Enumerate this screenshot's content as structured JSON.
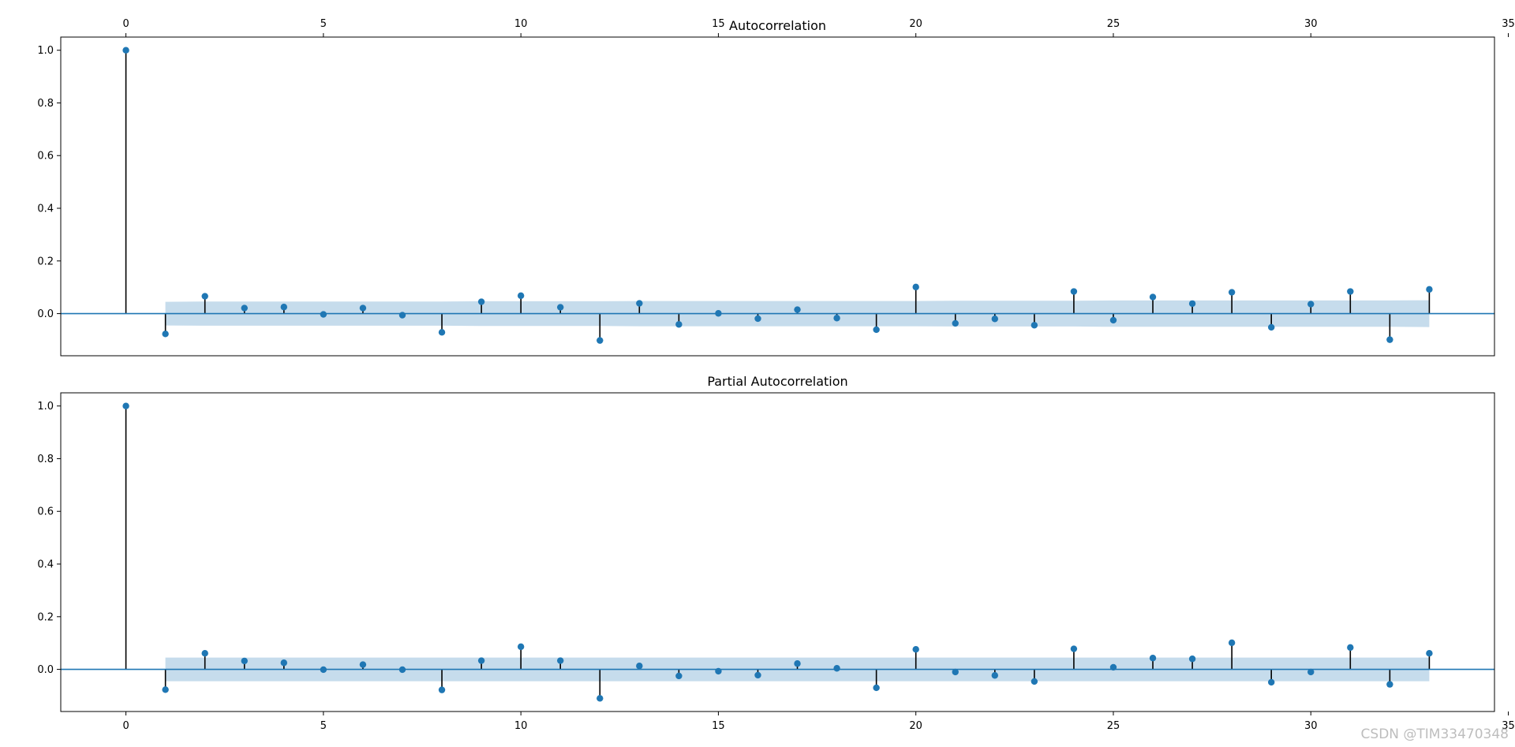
{
  "chart_data": [
    {
      "type": "scatter",
      "title": "Autocorrelation",
      "xlabel": "",
      "ylabel": "",
      "x": [
        0,
        1,
        2,
        3,
        4,
        5,
        6,
        7,
        8,
        9,
        10,
        11,
        12,
        13,
        14,
        15,
        16,
        17,
        18,
        19,
        20,
        21,
        22,
        23,
        24,
        25,
        26,
        27,
        28,
        29,
        30,
        31,
        32,
        33
      ],
      "values": [
        1.0,
        -0.077,
        0.066,
        0.021,
        0.025,
        -0.003,
        0.021,
        -0.006,
        -0.071,
        0.045,
        0.068,
        0.024,
        -0.102,
        0.039,
        -0.041,
        0.001,
        -0.019,
        0.015,
        -0.017,
        -0.061,
        0.101,
        -0.037,
        -0.02,
        -0.044,
        0.084,
        -0.025,
        0.063,
        0.038,
        0.081,
        -0.052,
        0.036,
        0.084,
        -0.099,
        0.092
      ],
      "confint": [
        [
          1,
          0.045
        ],
        [
          2,
          0.046
        ],
        [
          3,
          0.046
        ],
        [
          4,
          0.046
        ],
        [
          5,
          0.046
        ],
        [
          6,
          0.046
        ],
        [
          7,
          0.046
        ],
        [
          8,
          0.046
        ],
        [
          9,
          0.047
        ],
        [
          10,
          0.047
        ],
        [
          11,
          0.047
        ],
        [
          12,
          0.047
        ],
        [
          13,
          0.048
        ],
        [
          14,
          0.048
        ],
        [
          15,
          0.048
        ],
        [
          16,
          0.048
        ],
        [
          17,
          0.048
        ],
        [
          18,
          0.048
        ],
        [
          19,
          0.048
        ],
        [
          20,
          0.048
        ],
        [
          21,
          0.049
        ],
        [
          22,
          0.049
        ],
        [
          23,
          0.049
        ],
        [
          24,
          0.049
        ],
        [
          25,
          0.05
        ],
        [
          26,
          0.05
        ],
        [
          27,
          0.05
        ],
        [
          28,
          0.05
        ],
        [
          29,
          0.05
        ],
        [
          30,
          0.05
        ],
        [
          31,
          0.05
        ],
        [
          32,
          0.05
        ],
        [
          33,
          0.051
        ]
      ],
      "xlim": [
        -1.65,
        34.65
      ],
      "ylim": [
        -0.16,
        1.05
      ],
      "xticks": [
        "0",
        "5",
        "10",
        "15",
        "20",
        "25",
        "30",
        "35"
      ],
      "yticks": [
        "0.0",
        "0.2",
        "0.4",
        "0.6",
        "0.8",
        "1.0"
      ],
      "xticks_position": "top"
    },
    {
      "type": "scatter",
      "title": "Partial Autocorrelation",
      "xlabel": "",
      "ylabel": "",
      "x": [
        0,
        1,
        2,
        3,
        4,
        5,
        6,
        7,
        8,
        9,
        10,
        11,
        12,
        13,
        14,
        15,
        16,
        17,
        18,
        19,
        20,
        21,
        22,
        23,
        24,
        25,
        26,
        27,
        28,
        29,
        30,
        31,
        32,
        33
      ],
      "values": [
        1.0,
        -0.077,
        0.061,
        0.032,
        0.025,
        -0.001,
        0.018,
        -0.001,
        -0.078,
        0.033,
        0.086,
        0.033,
        -0.11,
        0.013,
        -0.025,
        -0.007,
        -0.022,
        0.022,
        0.004,
        -0.07,
        0.076,
        -0.01,
        -0.023,
        -0.046,
        0.078,
        0.008,
        0.043,
        0.04,
        0.101,
        -0.049,
        -0.01,
        0.083,
        -0.057,
        0.061
      ],
      "confint": [
        [
          1,
          0.045
        ],
        [
          33,
          0.045
        ]
      ],
      "xlim": [
        -1.65,
        34.65
      ],
      "ylim": [
        -0.16,
        1.05
      ],
      "xticks": [
        "0",
        "5",
        "10",
        "15",
        "20",
        "25",
        "30",
        "35"
      ],
      "yticks": [
        "0.0",
        "0.2",
        "0.4",
        "0.6",
        "0.8",
        "1.0"
      ],
      "xticks_position": "bottom"
    }
  ],
  "colors": {
    "marker": "#1f77b4",
    "stem": "#000000",
    "zero_line": "#1f77b4",
    "confidence_band": "#c0d8ea"
  },
  "watermark": "CSDN @TIM33470348"
}
